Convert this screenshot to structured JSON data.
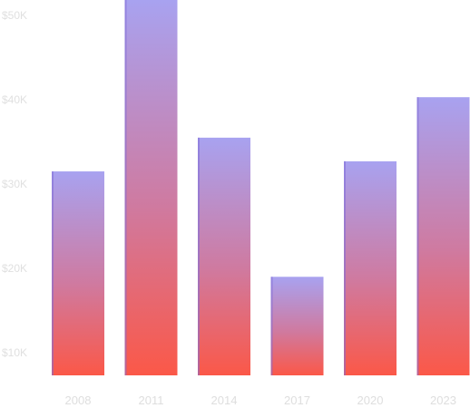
{
  "chart_data": {
    "type": "bar",
    "title": "",
    "xlabel": "",
    "ylabel": "",
    "categories": [
      "2008",
      "2011",
      "2014",
      "2017",
      "2020",
      "2023"
    ],
    "values": [
      31500,
      53000,
      35500,
      19000,
      32700,
      40300
    ],
    "ylim": [
      8000,
      52000
    ],
    "yticks": [
      10000,
      20000,
      30000,
      40000,
      50000
    ],
    "ytick_labels": [
      "$10K",
      "$20K",
      "$30K",
      "$40K",
      "$50K"
    ],
    "grid": false,
    "legend": "none",
    "colors": {
      "bar_top": "#a8a2f0",
      "bar_mid": "#cf7aa0",
      "bar_bottom": "#fb5848",
      "bar_edge": "#7f6bd6",
      "tick_text": "#e0e0e0"
    }
  }
}
